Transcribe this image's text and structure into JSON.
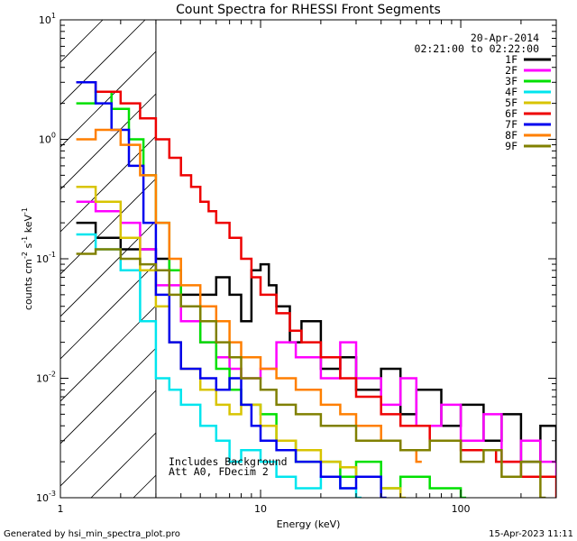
{
  "footer": {
    "generated_by": "Generated by hsi_min_spectra_plot.pro",
    "timestamp": "15-Apr-2023 11:11"
  },
  "chart_data": {
    "type": "line",
    "title": "Count Spectra for RHESSI Front Segments",
    "xlabel": "Energy (keV)",
    "ylabel_parts": {
      "base": "counts cm",
      "exp1": "-2",
      "mid": " s",
      "exp2": "-1",
      "end": " keV",
      "exp3": "-1"
    },
    "x_scale": "log",
    "y_scale": "log",
    "xlim": [
      1,
      300
    ],
    "ylim": [
      0.001,
      10
    ],
    "x_ticks": [
      {
        "value": 1,
        "label": "1"
      },
      {
        "value": 10,
        "label": "10"
      },
      {
        "value": 100,
        "label": "100"
      }
    ],
    "y_ticks": [
      {
        "value": 0.001,
        "base": "10",
        "exp": "-3"
      },
      {
        "value": 0.01,
        "base": "10",
        "exp": "-2"
      },
      {
        "value": 0.1,
        "base": "10",
        "exp": "-1"
      },
      {
        "value": 1,
        "base": "10",
        "exp": "0"
      },
      {
        "value": 10,
        "base": "10",
        "exp": "1"
      }
    ],
    "date": "20-Apr-2014",
    "time_range": "02:21:00 to 02:22:00",
    "attenuator_threshold_kev": 3,
    "annotation_lines": [
      "Includes Background",
      "Att A0, FDecim 2"
    ],
    "legend_position": "top-right",
    "series": [
      {
        "name": "1F",
        "color": "#000000",
        "x": [
          1.2,
          1.5,
          2,
          3,
          3.5,
          4,
          5,
          6,
          7,
          8,
          9,
          10,
          11,
          12,
          14,
          16,
          20,
          25,
          30,
          40,
          50,
          60,
          80,
          100,
          130,
          160,
          200,
          250,
          300
        ],
        "y": [
          0.2,
          0.15,
          0.12,
          0.1,
          0.08,
          0.05,
          0.05,
          0.07,
          0.05,
          0.03,
          0.08,
          0.09,
          0.06,
          0.04,
          0.02,
          0.03,
          0.012,
          0.015,
          0.008,
          0.012,
          0.005,
          0.008,
          0.004,
          0.006,
          0.003,
          0.005,
          0.002,
          0.004,
          0.002
        ]
      },
      {
        "name": "2F",
        "color": "#ff00ff",
        "x": [
          1.2,
          1.5,
          2,
          2.5,
          3,
          4,
          5,
          6,
          7,
          8,
          10,
          12,
          15,
          20,
          25,
          30,
          40,
          50,
          60,
          80,
          100,
          130,
          160,
          200,
          250,
          300
        ],
        "y": [
          0.3,
          0.25,
          0.2,
          0.12,
          0.06,
          0.03,
          0.02,
          0.015,
          0.012,
          0.01,
          0.012,
          0.02,
          0.015,
          0.01,
          0.02,
          0.01,
          0.006,
          0.01,
          0.004,
          0.006,
          0.003,
          0.005,
          0.002,
          0.003,
          0.002,
          0.0015
        ]
      },
      {
        "name": "3F",
        "color": "#00e000",
        "x": [
          1.2,
          1.5,
          1.8,
          2.2,
          2.6,
          3,
          3.5,
          4,
          5,
          6,
          7,
          8,
          10,
          12,
          15,
          20,
          25,
          30,
          40,
          50,
          70,
          100
        ],
        "y": [
          2.0,
          2.5,
          1.8,
          1.0,
          0.5,
          0.2,
          0.08,
          0.04,
          0.02,
          0.012,
          0.008,
          0.006,
          0.005,
          0.003,
          0.002,
          0.002,
          0.0015,
          0.002,
          0.0012,
          0.0015,
          0.0012,
          0.001
        ]
      },
      {
        "name": "4F",
        "color": "#00e5ee",
        "x": [
          1.2,
          1.5,
          2,
          2.5,
          3,
          3.5,
          4,
          5,
          6,
          7,
          8,
          10,
          12,
          15,
          20,
          25,
          30
        ],
        "y": [
          0.16,
          0.12,
          0.08,
          0.03,
          0.01,
          0.008,
          0.006,
          0.004,
          0.003,
          0.002,
          0.0025,
          0.002,
          0.0015,
          0.0012,
          0.0015,
          0.0012,
          0.001
        ]
      },
      {
        "name": "5F",
        "color": "#d8c400",
        "x": [
          1.2,
          1.5,
          2,
          2.5,
          3,
          3.5,
          4,
          5,
          6,
          7,
          8,
          10,
          12,
          15,
          20,
          25,
          30,
          40,
          50
        ],
        "y": [
          0.4,
          0.3,
          0.15,
          0.08,
          0.04,
          0.02,
          0.012,
          0.008,
          0.006,
          0.005,
          0.006,
          0.004,
          0.003,
          0.0025,
          0.002,
          0.0018,
          0.0015,
          0.0012,
          0.001
        ]
      },
      {
        "name": "6F",
        "color": "#ee0000",
        "x": [
          1.2,
          1.5,
          2,
          2.5,
          3,
          3.5,
          4,
          4.5,
          5,
          5.5,
          6,
          7,
          8,
          9,
          10,
          12,
          14,
          16,
          20,
          25,
          30,
          40,
          50,
          70,
          100,
          150,
          200,
          300
        ],
        "y": [
          3.0,
          2.5,
          2.0,
          1.5,
          1.0,
          0.7,
          0.5,
          0.4,
          0.3,
          0.25,
          0.2,
          0.15,
          0.1,
          0.07,
          0.05,
          0.035,
          0.025,
          0.02,
          0.015,
          0.01,
          0.007,
          0.005,
          0.004,
          0.003,
          0.0025,
          0.002,
          0.0015,
          0.001
        ]
      },
      {
        "name": "7F",
        "color": "#0000ee",
        "x": [
          1.2,
          1.5,
          1.8,
          2.2,
          2.6,
          3,
          3.5,
          4,
          5,
          6,
          7,
          8,
          9,
          10,
          12,
          15,
          20,
          25,
          30,
          40
        ],
        "y": [
          3.0,
          2.0,
          1.2,
          0.6,
          0.2,
          0.05,
          0.02,
          0.012,
          0.01,
          0.008,
          0.01,
          0.006,
          0.004,
          0.003,
          0.0025,
          0.002,
          0.0015,
          0.0012,
          0.0015,
          0.001
        ]
      },
      {
        "name": "8F",
        "color": "#ff7f00",
        "x": [
          1.2,
          1.5,
          2,
          2.5,
          3,
          3.5,
          4,
          5,
          6,
          7,
          8,
          10,
          12,
          15,
          20,
          25,
          30,
          40,
          50,
          60
        ],
        "y": [
          1.0,
          1.2,
          0.9,
          0.5,
          0.2,
          0.1,
          0.06,
          0.04,
          0.03,
          0.02,
          0.015,
          0.012,
          0.01,
          0.008,
          0.006,
          0.005,
          0.004,
          0.003,
          0.0025,
          0.002
        ]
      },
      {
        "name": "9F",
        "color": "#808000",
        "x": [
          1.2,
          1.5,
          2,
          2.5,
          3,
          3.5,
          4,
          5,
          6,
          7,
          8,
          10,
          12,
          15,
          20,
          25,
          30,
          40,
          50,
          70,
          100,
          130,
          160,
          200,
          250
        ],
        "y": [
          0.11,
          0.12,
          0.1,
          0.09,
          0.08,
          0.05,
          0.04,
          0.03,
          0.02,
          0.015,
          0.01,
          0.008,
          0.006,
          0.005,
          0.004,
          0.004,
          0.003,
          0.003,
          0.0025,
          0.003,
          0.002,
          0.0025,
          0.0015,
          0.002,
          0.001
        ]
      }
    ]
  }
}
